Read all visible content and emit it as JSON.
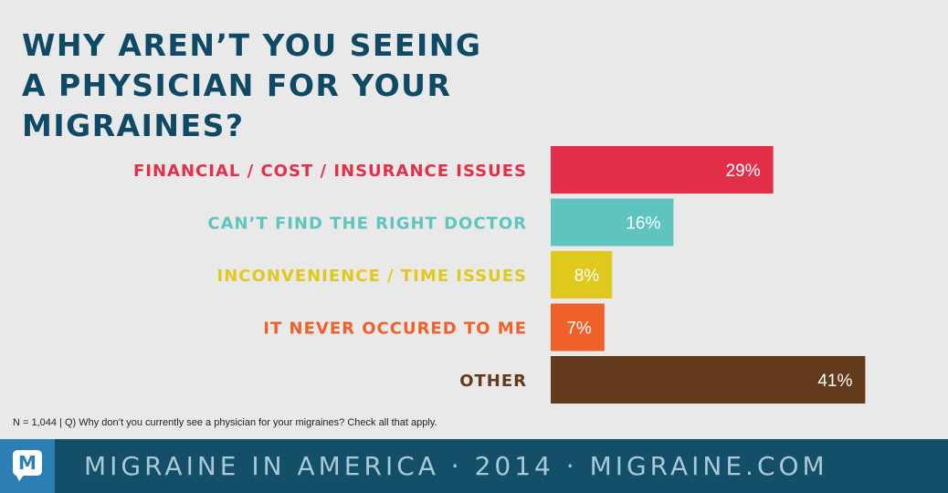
{
  "chart_data": {
    "type": "bar",
    "orientation": "horizontal",
    "title": "WHY AREN’T YOU SEEING\nA PHYSICIAN FOR YOUR\nMIGRAINES?",
    "categories": [
      "FINANCIAL / COST / INSURANCE ISSUES",
      "CAN’T FIND THE RIGHT DOCTOR",
      "INCONVENIENCE / TIME ISSUES",
      "IT NEVER OCCURED TO ME",
      "OTHER"
    ],
    "values": [
      29,
      16,
      8,
      7,
      41
    ],
    "value_labels": [
      "29%",
      "16%",
      "8%",
      "7%",
      "41%"
    ],
    "colors": [
      "#e3304a",
      "#5fc4c0",
      "#e0c91e",
      "#f0602a",
      "#633a1c"
    ],
    "xlim": [
      0,
      100
    ],
    "grid": false,
    "legend": "none"
  },
  "footnote": "N = 1,044  |  Q) Why don’t you currently see a physician for your migraines? Check all that apply.",
  "footer": {
    "logo_letter": "M",
    "logo_icon": "migraine-logo-icon",
    "text": "MIGRAINE IN AMERICA · 2014 · MIGRAINE.COM"
  }
}
